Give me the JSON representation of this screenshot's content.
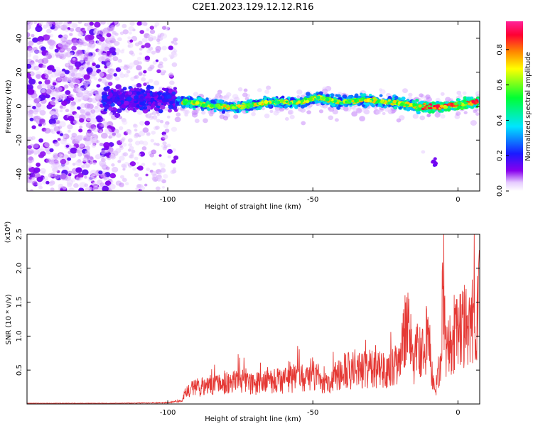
{
  "title": "C2E1.2023.129.12.12.R16",
  "colors": {
    "snr_line": "#e53935",
    "axes": "#000000"
  },
  "chart_data": [
    {
      "type": "heatmap",
      "xlabel": "Height of straight line (km)",
      "ylabel": "Frequency (Hz)",
      "xlim": [
        -148.5,
        7.5
      ],
      "ylim": [
        -50,
        50
      ],
      "x_ticks": [
        -100,
        -50,
        0
      ],
      "y_ticks": [
        -40,
        -20,
        0,
        20,
        40
      ],
      "colorbar": {
        "label": "Normalized spectral amplitude",
        "range": [
          0,
          0.96
        ],
        "ticks": [
          0.0,
          0.2,
          0.4,
          0.6,
          0.8
        ],
        "colormap": "rainbow (white-violet-blue-cyan-green-yellow-red-magenta)"
      },
      "features": [
        {
          "x_range": [
            -148.5,
            -118
          ],
          "freq_range": [
            -50,
            50
          ],
          "amplitude": "low-medium, scattered noise"
        },
        {
          "x_range": [
            -118,
            -97
          ],
          "freq_range": [
            -50,
            50
          ],
          "amplitude": "low, sparse scattered noise"
        },
        {
          "x_range": [
            -122,
            -97
          ],
          "freq_center": 5,
          "freq_width": 12,
          "amplitude": "medium"
        },
        {
          "x_range": [
            -97,
            7.5
          ],
          "freq_center": 1,
          "freq_width": 6,
          "amplitude": "high, continuous narrow band"
        },
        {
          "x": -48,
          "freq_center": 7,
          "amplitude": "medium bump"
        },
        {
          "x": -8,
          "freq": -33,
          "amplitude": "medium isolated spot"
        }
      ]
    },
    {
      "type": "line",
      "xlabel": "Height of straight line (km)",
      "ylabel": "SNR (10 * v/v)",
      "y_multiplier": "(x10⁴)",
      "xlim": [
        -148.5,
        7.5
      ],
      "ylim": [
        0,
        2.5
      ],
      "x_ticks": [
        -100,
        -50,
        0
      ],
      "y_ticks": [
        0.5,
        1.0,
        1.5,
        2.0,
        2.5
      ],
      "series": [
        {
          "x": [
            -148,
            -140,
            -120,
            -100,
            -95,
            -93,
            -90,
            -85,
            -80,
            -75,
            -70,
            -65,
            -60,
            -55,
            -50,
            -45,
            -40,
            -35,
            -30,
            -25,
            -20,
            -18,
            -15,
            -12,
            -10,
            -8,
            -6,
            -5,
            -4,
            -2,
            0,
            2,
            4,
            6,
            7.5
          ],
          "y": [
            0.01,
            0.01,
            0.01,
            0.02,
            0.05,
            0.28,
            0.3,
            0.35,
            0.4,
            0.45,
            0.38,
            0.45,
            0.42,
            0.5,
            0.55,
            0.42,
            0.6,
            0.62,
            0.65,
            0.6,
            0.7,
            1.5,
            0.8,
            1.1,
            1.2,
            0.2,
            0.85,
            2.52,
            0.95,
            1.1,
            1.3,
            1.4,
            1.45,
            1.5,
            1.92
          ]
        }
      ]
    }
  ]
}
